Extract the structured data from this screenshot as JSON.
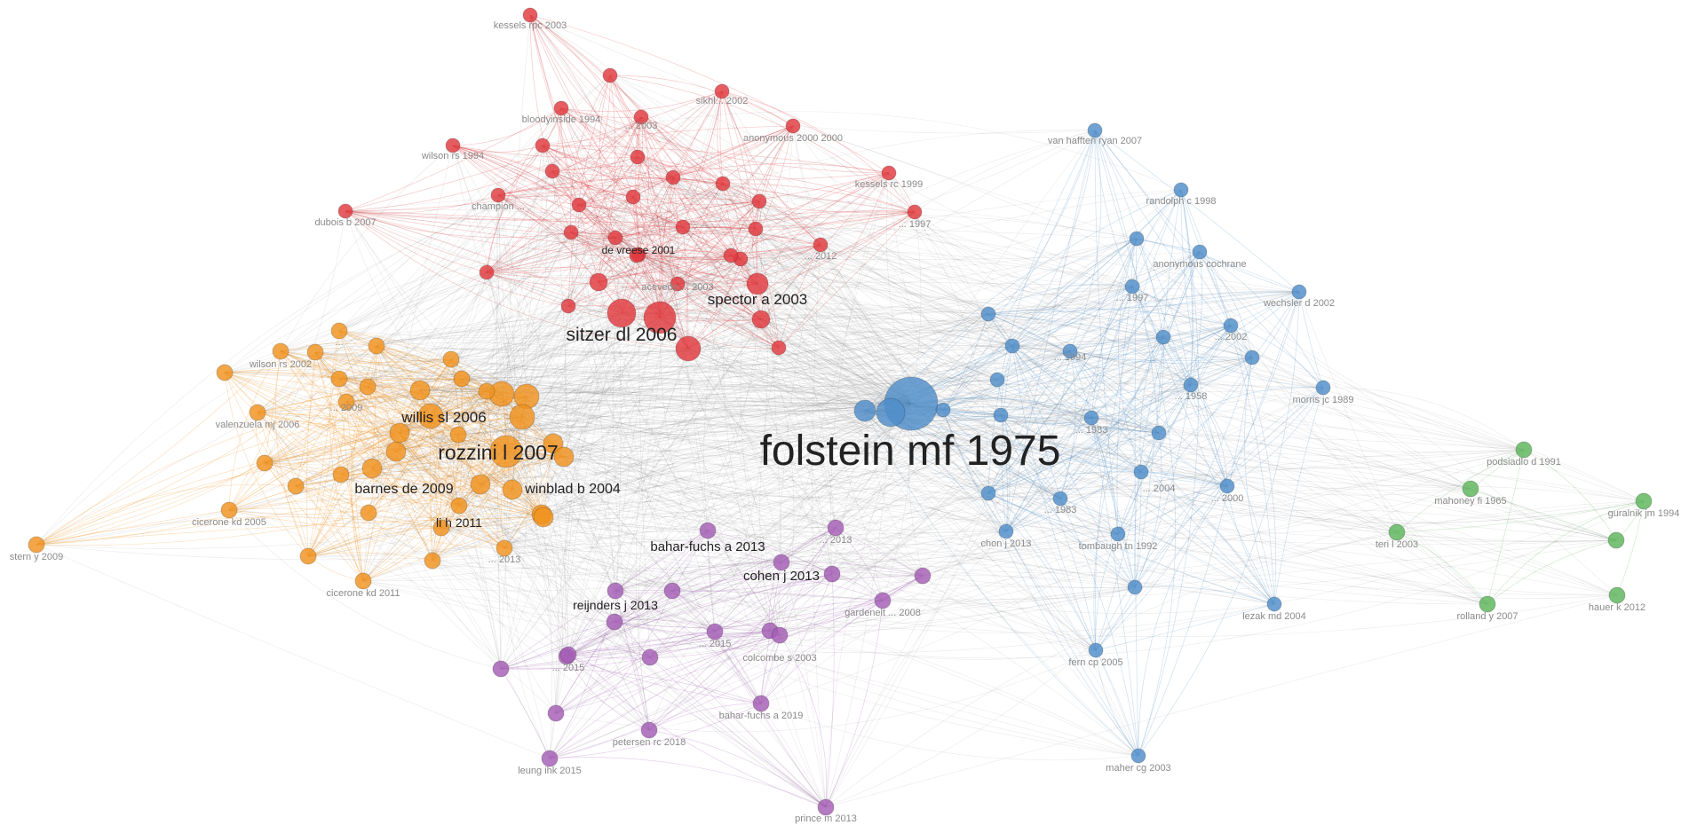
{
  "palette": {
    "red": "#e0393e",
    "orange": "#f0921f",
    "blue": "#4f8ec9",
    "purple": "#a35db5",
    "green": "#5bb55a",
    "edge_gray": "#5a5a5a"
  },
  "nodes": [
    {
      "id": "kessels",
      "cluster": "red",
      "label": "kessels rpc 2003"
    },
    {
      "id": "sikhl",
      "cluster": "red",
      "label": "sikhl... 2002"
    },
    {
      "id": "r3",
      "cluster": "red",
      "label": ""
    },
    {
      "id": "r4",
      "cluster": "red",
      "label": "bloodyinside 1994"
    },
    {
      "id": "r5",
      "cluster": "red",
      "label": "... 2003"
    },
    {
      "id": "r6",
      "cluster": "red",
      "label": "anonymous 2000 2000"
    },
    {
      "id": "wilson94",
      "cluster": "red",
      "label": "wilson rs 1994"
    },
    {
      "id": "r8",
      "cluster": "red",
      "label": ""
    },
    {
      "id": "r9",
      "cluster": "red",
      "label": ""
    },
    {
      "id": "kessels99",
      "cluster": "red",
      "label": "kessels rc 1999"
    },
    {
      "id": "r11",
      "cluster": "red",
      "label": "champion ..."
    },
    {
      "id": "r12",
      "cluster": "red",
      "label": ""
    },
    {
      "id": "r13",
      "cluster": "red",
      "label": ""
    },
    {
      "id": "r14",
      "cluster": "red",
      "label": ""
    },
    {
      "id": "r15",
      "cluster": "red",
      "label": ""
    },
    {
      "id": "r16",
      "cluster": "red",
      "label": ""
    },
    {
      "id": "dubois",
      "cluster": "red",
      "label": "dubois b 2007"
    },
    {
      "id": "r18",
      "cluster": "red",
      "label": "... 1997"
    },
    {
      "id": "r19",
      "cluster": "red",
      "label": ""
    },
    {
      "id": "r20",
      "cluster": "red",
      "label": ""
    },
    {
      "id": "r21",
      "cluster": "red",
      "label": ""
    },
    {
      "id": "r22",
      "cluster": "red",
      "label": ""
    },
    {
      "id": "r23",
      "cluster": "red",
      "label": ""
    },
    {
      "id": "devreese",
      "cluster": "red",
      "label": "de vreese 2001"
    },
    {
      "id": "r25",
      "cluster": "red",
      "label": ""
    },
    {
      "id": "r26",
      "cluster": "red",
      "label": "... 2012"
    },
    {
      "id": "r27",
      "cluster": "red",
      "label": ""
    },
    {
      "id": "r28",
      "cluster": "red",
      "label": ""
    },
    {
      "id": "r29",
      "cluster": "red",
      "label": "acevedo ... 2003"
    },
    {
      "id": "r30",
      "cluster": "red",
      "label": ""
    },
    {
      "id": "r31",
      "cluster": "red",
      "label": ""
    },
    {
      "id": "spector",
      "cluster": "red",
      "label": "spector a 2003"
    },
    {
      "id": "r33",
      "cluster": "red",
      "label": ""
    },
    {
      "id": "sitzer",
      "cluster": "red",
      "label": "sitzer dl 2006"
    },
    {
      "id": "r35",
      "cluster": "red",
      "label": ""
    },
    {
      "id": "r36",
      "cluster": "red",
      "label": ""
    },
    {
      "id": "r37",
      "cluster": "red",
      "label": ""
    },
    {
      "id": "r38",
      "cluster": "red",
      "label": ""
    },
    {
      "id": "o1",
      "cluster": "orange",
      "label": ""
    },
    {
      "id": "wilsonrs",
      "cluster": "orange",
      "label": "wilson rs 2002"
    },
    {
      "id": "o3",
      "cluster": "orange",
      "label": "..."
    },
    {
      "id": "o4",
      "cluster": "orange",
      "label": ""
    },
    {
      "id": "o5",
      "cluster": "orange",
      "label": ""
    },
    {
      "id": "o6",
      "cluster": "orange",
      "label": ""
    },
    {
      "id": "o7",
      "cluster": "orange",
      "label": ""
    },
    {
      "id": "o8",
      "cluster": "orange",
      "label": ""
    },
    {
      "id": "o9",
      "cluster": "orange",
      "label": "... 2009"
    },
    {
      "id": "valenzuela",
      "cluster": "orange",
      "label": "valenzuela mj 2006"
    },
    {
      "id": "willis",
      "cluster": "orange",
      "label": "willis sl 2006"
    },
    {
      "id": "o12",
      "cluster": "orange",
      "label": ""
    },
    {
      "id": "o13",
      "cluster": "orange",
      "label": ""
    },
    {
      "id": "o14",
      "cluster": "orange",
      "label": ""
    },
    {
      "id": "o15",
      "cluster": "orange",
      "label": ""
    },
    {
      "id": "o16",
      "cluster": "orange",
      "label": ""
    },
    {
      "id": "o17",
      "cluster": "orange",
      "label": ""
    },
    {
      "id": "rozzini",
      "cluster": "orange",
      "label": "rozzini l 2007"
    },
    {
      "id": "o19",
      "cluster": "orange",
      "label": ""
    },
    {
      "id": "o20",
      "cluster": "orange",
      "label": ""
    },
    {
      "id": "o21",
      "cluster": "orange",
      "label": ""
    },
    {
      "id": "o22",
      "cluster": "orange",
      "label": ""
    },
    {
      "id": "barnes",
      "cluster": "orange",
      "label": "barnes de 2009"
    },
    {
      "id": "winblad",
      "cluster": "orange",
      "label": "winblad b 2004"
    },
    {
      "id": "o25",
      "cluster": "orange",
      "label": ""
    },
    {
      "id": "o26",
      "cluster": "orange",
      "label": ""
    },
    {
      "id": "cicerone05",
      "cluster": "orange",
      "label": "cicerone kd 2005"
    },
    {
      "id": "li2011",
      "cluster": "orange",
      "label": "li h 2011"
    },
    {
      "id": "o29",
      "cluster": "orange",
      "label": ""
    },
    {
      "id": "o30",
      "cluster": "orange",
      "label": ""
    },
    {
      "id": "o31",
      "cluster": "orange",
      "label": ""
    },
    {
      "id": "o32",
      "cluster": "orange",
      "label": "... 2013"
    },
    {
      "id": "o33",
      "cluster": "orange",
      "label": ""
    },
    {
      "id": "o34",
      "cluster": "orange",
      "label": ""
    },
    {
      "id": "cicerone11",
      "cluster": "orange",
      "label": "cicerone kd 2011"
    },
    {
      "id": "stern",
      "cluster": "orange",
      "label": "stern y 2009"
    },
    {
      "id": "o37",
      "cluster": "orange",
      "label": ""
    },
    {
      "id": "o38",
      "cluster": "orange",
      "label": ""
    },
    {
      "id": "o39",
      "cluster": "orange",
      "label": ""
    },
    {
      "id": "o40",
      "cluster": "orange",
      "label": ""
    },
    {
      "id": "folstein",
      "cluster": "blue",
      "label": "folstein mf 1975"
    },
    {
      "id": "b2",
      "cluster": "blue",
      "label": ""
    },
    {
      "id": "b3",
      "cluster": "blue",
      "label": ""
    },
    {
      "id": "vanhaf",
      "cluster": "blue",
      "label": "van hafften ryan 2007"
    },
    {
      "id": "randolph",
      "cluster": "blue",
      "label": "randolph c 1998"
    },
    {
      "id": "b6",
      "cluster": "blue",
      "label": ""
    },
    {
      "id": "anonymous",
      "cluster": "blue",
      "label": "anonymous cochrane"
    },
    {
      "id": "b8",
      "cluster": "blue",
      "label": "... 1997"
    },
    {
      "id": "wechsler",
      "cluster": "blue",
      "label": "wechsler d 2002"
    },
    {
      "id": "b10",
      "cluster": "blue",
      "label": ""
    },
    {
      "id": "b11",
      "cluster": "blue",
      "label": ""
    },
    {
      "id": "b12",
      "cluster": "blue",
      "label": "... 2002"
    },
    {
      "id": "b13",
      "cluster": "blue",
      "label": "... 1994"
    },
    {
      "id": "b14",
      "cluster": "blue",
      "label": ""
    },
    {
      "id": "b15",
      "cluster": "blue",
      "label": ""
    },
    {
      "id": "b16",
      "cluster": "blue",
      "label": "... 1958"
    },
    {
      "id": "morris",
      "cluster": "blue",
      "label": "morris jc 1989"
    },
    {
      "id": "b18",
      "cluster": "blue",
      "label": ""
    },
    {
      "id": "b19",
      "cluster": "blue",
      "label": "... 1983"
    },
    {
      "id": "b20",
      "cluster": "blue",
      "label": ""
    },
    {
      "id": "b21",
      "cluster": "blue",
      "label": "... 2004"
    },
    {
      "id": "b22",
      "cluster": "blue",
      "label": "... 2000"
    },
    {
      "id": "b23",
      "cluster": "blue",
      "label": "... 1983"
    },
    {
      "id": "b24",
      "cluster": "blue",
      "label": ""
    },
    {
      "id": "chon",
      "cluster": "blue",
      "label": "chon j 2013"
    },
    {
      "id": "tombaugh",
      "cluster": "blue",
      "label": "tombaugh tn 1992"
    },
    {
      "id": "b27",
      "cluster": "blue",
      "label": ""
    },
    {
      "id": "lezak",
      "cluster": "blue",
      "label": "lezak md 2004"
    },
    {
      "id": "fern",
      "cluster": "blue",
      "label": "fern cp 2005"
    },
    {
      "id": "maher",
      "cluster": "blue",
      "label": "maher cg 2003"
    },
    {
      "id": "b31",
      "cluster": "blue",
      "label": ""
    },
    {
      "id": "b32",
      "cluster": "blue",
      "label": ""
    },
    {
      "id": "bahar2013",
      "cluster": "purple",
      "label": "bahar-fuchs a 2013"
    },
    {
      "id": "p2",
      "cluster": "purple",
      "label": "... 2013"
    },
    {
      "id": "cohen",
      "cluster": "purple",
      "label": "cohen j 2013"
    },
    {
      "id": "p4",
      "cluster": "purple",
      "label": ""
    },
    {
      "id": "p5",
      "cluster": "purple",
      "label": ""
    },
    {
      "id": "reijnders",
      "cluster": "purple",
      "label": "reijnders j 2013"
    },
    {
      "id": "p7",
      "cluster": "purple",
      "label": ""
    },
    {
      "id": "gardenelt",
      "cluster": "purple",
      "label": "gardenelt ... 2008"
    },
    {
      "id": "p9",
      "cluster": "purple",
      "label": ""
    },
    {
      "id": "p10",
      "cluster": "purple",
      "label": "... 2015"
    },
    {
      "id": "p11",
      "cluster": "purple",
      "label": ""
    },
    {
      "id": "colcombe",
      "cluster": "purple",
      "label": "colcombe s 2003"
    },
    {
      "id": "p13",
      "cluster": "purple",
      "label": ""
    },
    {
      "id": "p14",
      "cluster": "purple",
      "label": "... 2015"
    },
    {
      "id": "p15",
      "cluster": "purple",
      "label": ""
    },
    {
      "id": "bahar2019",
      "cluster": "purple",
      "label": "bahar-fuchs a 2019"
    },
    {
      "id": "p17",
      "cluster": "purple",
      "label": ""
    },
    {
      "id": "petersen",
      "cluster": "purple",
      "label": "petersen rc 2018"
    },
    {
      "id": "leung",
      "cluster": "purple",
      "label": "leung ihk 2015"
    },
    {
      "id": "prince",
      "cluster": "purple",
      "label": "prince m 2013"
    },
    {
      "id": "p21",
      "cluster": "purple",
      "label": ""
    },
    {
      "id": "podsiadlo",
      "cluster": "green",
      "label": "podsiadlo d 1991"
    },
    {
      "id": "mahoney",
      "cluster": "green",
      "label": "mahoney fi 1965"
    },
    {
      "id": "guralnik",
      "cluster": "green",
      "label": "guralnik jm 1994"
    },
    {
      "id": "teri",
      "cluster": "green",
      "label": "teri l 2003"
    },
    {
      "id": "g5",
      "cluster": "green",
      "label": ""
    },
    {
      "id": "rolland",
      "cluster": "green",
      "label": "rolland y 2007"
    },
    {
      "id": "hauer",
      "cluster": "green",
      "label": "hauer k 2012"
    }
  ]
}
